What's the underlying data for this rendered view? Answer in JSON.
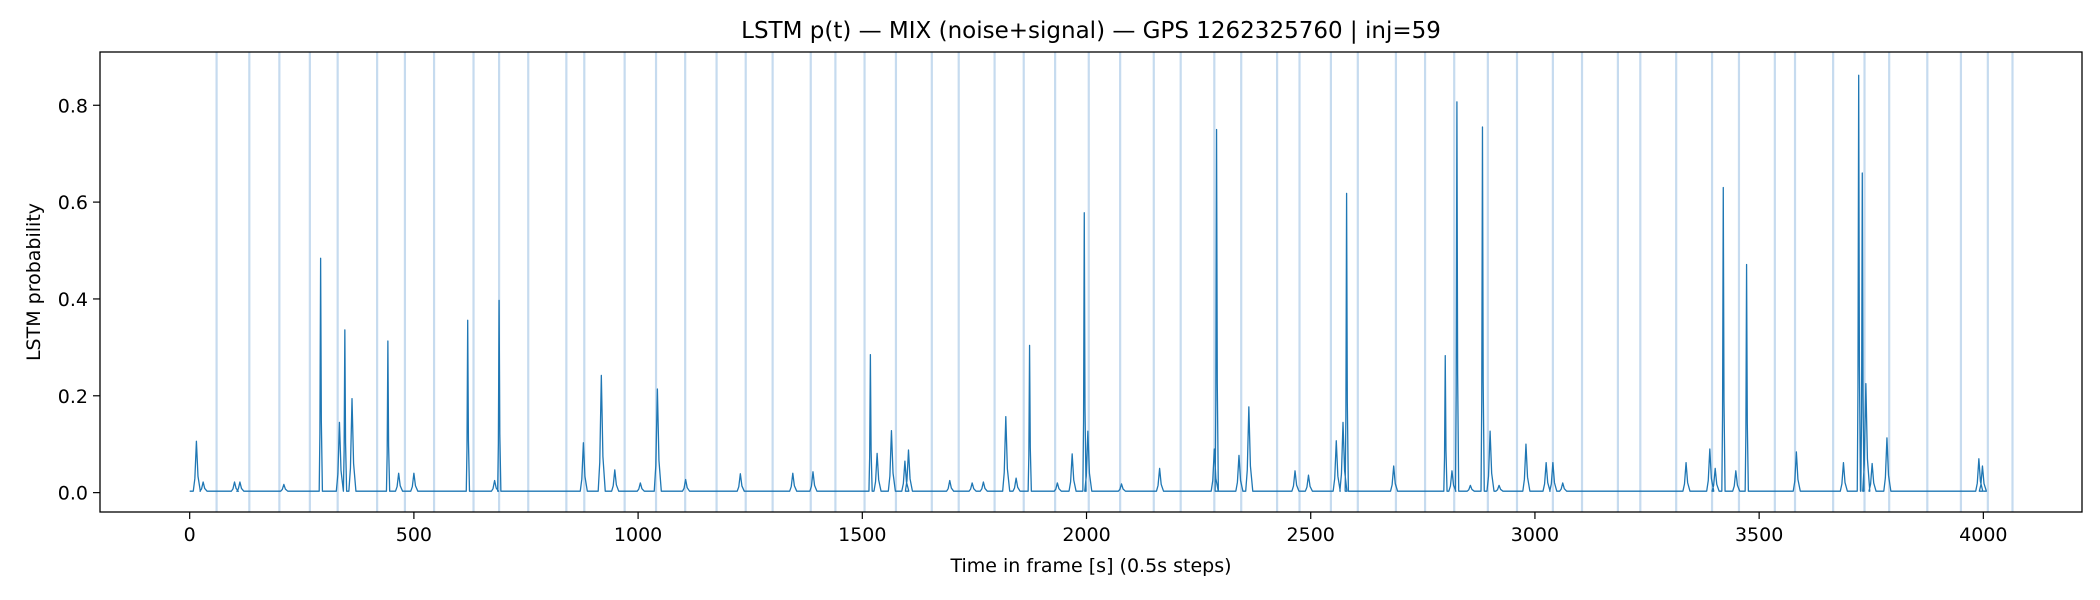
{
  "chart_data": {
    "type": "line",
    "title": "LSTM p(t) — MIX (noise+signal) — GPS 1262325760 | inj=59",
    "xlabel": "Time in frame [s] (0.5s steps)",
    "ylabel": "LSTM probability",
    "xlim": [
      -200,
      4220
    ],
    "ylim": [
      -0.04,
      0.91
    ],
    "x_ticks": [
      0,
      500,
      1000,
      1500,
      2000,
      2500,
      3000,
      3500,
      4000
    ],
    "x_tick_labels": [
      "0",
      "500",
      "1000",
      "1500",
      "2000",
      "2500",
      "3000",
      "3500",
      "4000"
    ],
    "y_ticks": [
      0.0,
      0.2,
      0.4,
      0.6,
      0.8
    ],
    "y_tick_labels": [
      "0.0",
      "0.2",
      "0.4",
      "0.6",
      "0.8"
    ],
    "grid": false,
    "series_color": "#1f77b4",
    "injection_marker_color": "#c6dbef",
    "baseline": 0.003,
    "x_end": 4000,
    "injection_times": [
      60,
      133,
      200,
      268,
      330,
      418,
      480,
      545,
      633,
      690,
      755,
      840,
      880,
      970,
      1040,
      1105,
      1175,
      1240,
      1300,
      1385,
      1440,
      1505,
      1575,
      1655,
      1715,
      1795,
      1860,
      1930,
      2005,
      2075,
      2150,
      2210,
      2285,
      2345,
      2425,
      2475,
      2545,
      2605,
      2690,
      2755,
      2820,
      2895,
      2960,
      3040,
      3105,
      3185,
      3235,
      3315,
      3395,
      3455,
      3535,
      3580,
      3665,
      3735,
      3790,
      3875,
      3950,
      4010,
      4065
    ],
    "peaks": [
      {
        "x": 15,
        "y": 0.106
      },
      {
        "x": 30,
        "y": 0.022
      },
      {
        "x": 100,
        "y": 0.022
      },
      {
        "x": 112,
        "y": 0.022
      },
      {
        "x": 210,
        "y": 0.017
      },
      {
        "x": 292,
        "y": 0.484
      },
      {
        "x": 334,
        "y": 0.145
      },
      {
        "x": 346,
        "y": 0.336
      },
      {
        "x": 362,
        "y": 0.194
      },
      {
        "x": 442,
        "y": 0.313
      },
      {
        "x": 466,
        "y": 0.04
      },
      {
        "x": 500,
        "y": 0.04
      },
      {
        "x": 620,
        "y": 0.356
      },
      {
        "x": 680,
        "y": 0.025
      },
      {
        "x": 690,
        "y": 0.397
      },
      {
        "x": 878,
        "y": 0.103
      },
      {
        "x": 918,
        "y": 0.242
      },
      {
        "x": 948,
        "y": 0.047
      },
      {
        "x": 1005,
        "y": 0.02
      },
      {
        "x": 1043,
        "y": 0.214
      },
      {
        "x": 1106,
        "y": 0.027
      },
      {
        "x": 1228,
        "y": 0.039
      },
      {
        "x": 1345,
        "y": 0.04
      },
      {
        "x": 1390,
        "y": 0.043
      },
      {
        "x": 1518,
        "y": 0.285
      },
      {
        "x": 1533,
        "y": 0.081
      },
      {
        "x": 1565,
        "y": 0.128
      },
      {
        "x": 1603,
        "y": 0.088
      },
      {
        "x": 1595,
        "y": 0.065
      },
      {
        "x": 1695,
        "y": 0.025
      },
      {
        "x": 1745,
        "y": 0.02
      },
      {
        "x": 1770,
        "y": 0.022
      },
      {
        "x": 1820,
        "y": 0.157
      },
      {
        "x": 1843,
        "y": 0.03
      },
      {
        "x": 1873,
        "y": 0.304
      },
      {
        "x": 1935,
        "y": 0.02
      },
      {
        "x": 1968,
        "y": 0.08
      },
      {
        "x": 1995,
        "y": 0.578
      },
      {
        "x": 2003,
        "y": 0.127
      },
      {
        "x": 2078,
        "y": 0.018
      },
      {
        "x": 2163,
        "y": 0.05
      },
      {
        "x": 2285,
        "y": 0.09
      },
      {
        "x": 2290,
        "y": 0.75
      },
      {
        "x": 2340,
        "y": 0.077
      },
      {
        "x": 2362,
        "y": 0.177
      },
      {
        "x": 2465,
        "y": 0.045
      },
      {
        "x": 2495,
        "y": 0.036
      },
      {
        "x": 2557,
        "y": 0.107
      },
      {
        "x": 2572,
        "y": 0.145
      },
      {
        "x": 2580,
        "y": 0.618
      },
      {
        "x": 2685,
        "y": 0.055
      },
      {
        "x": 2800,
        "y": 0.283
      },
      {
        "x": 2815,
        "y": 0.045
      },
      {
        "x": 2826,
        "y": 0.807
      },
      {
        "x": 2856,
        "y": 0.015
      },
      {
        "x": 2883,
        "y": 0.755
      },
      {
        "x": 2900,
        "y": 0.127
      },
      {
        "x": 2920,
        "y": 0.015
      },
      {
        "x": 2980,
        "y": 0.1
      },
      {
        "x": 3025,
        "y": 0.062
      },
      {
        "x": 3040,
        "y": 0.062
      },
      {
        "x": 3062,
        "y": 0.02
      },
      {
        "x": 3337,
        "y": 0.062
      },
      {
        "x": 3390,
        "y": 0.09
      },
      {
        "x": 3402,
        "y": 0.05
      },
      {
        "x": 3420,
        "y": 0.63
      },
      {
        "x": 3448,
        "y": 0.045
      },
      {
        "x": 3472,
        "y": 0.471
      },
      {
        "x": 3583,
        "y": 0.084
      },
      {
        "x": 3688,
        "y": 0.062
      },
      {
        "x": 3722,
        "y": 0.862
      },
      {
        "x": 3730,
        "y": 0.66
      },
      {
        "x": 3738,
        "y": 0.225
      },
      {
        "x": 3752,
        "y": 0.06
      },
      {
        "x": 3785,
        "y": 0.113
      },
      {
        "x": 3990,
        "y": 0.07
      },
      {
        "x": 3998,
        "y": 0.055
      }
    ]
  }
}
